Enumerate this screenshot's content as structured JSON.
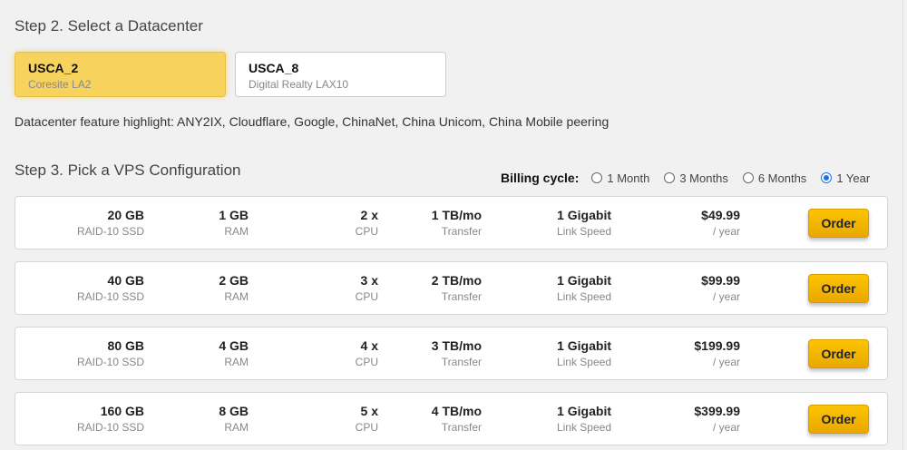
{
  "step2": {
    "title": "Step 2. Select a Datacenter",
    "datacenters": [
      {
        "code": "USCA_2",
        "name": "Coresite LA2",
        "selected": true
      },
      {
        "code": "USCA_8",
        "name": "Digital Realty LAX10",
        "selected": false
      }
    ],
    "feature": "Datacenter feature highlight: ANY2IX, Cloudflare, Google, ChinaNet, China Unicom, China Mobile peering"
  },
  "step3": {
    "title": "Step 3. Pick a VPS Configuration",
    "billing_label": "Billing cycle:",
    "billing_options": [
      {
        "label": "1 Month",
        "selected": false
      },
      {
        "label": "3 Months",
        "selected": false
      },
      {
        "label": "6 Months",
        "selected": false
      },
      {
        "label": "1 Year",
        "selected": true
      }
    ],
    "accent": "#1a73e8",
    "plans": [
      {
        "storage": "20 GB",
        "storage_l": "RAID-10 SSD",
        "ram": "1 GB",
        "ram_l": "RAM",
        "cpu": "2 x",
        "cpu_l": "CPU",
        "transfer": "1 TB/mo",
        "transfer_l": "Transfer",
        "link": "1 Gigabit",
        "link_l": "Link Speed",
        "price": "$49.99",
        "period": "/ year",
        "order": "Order"
      },
      {
        "storage": "40 GB",
        "storage_l": "RAID-10 SSD",
        "ram": "2 GB",
        "ram_l": "RAM",
        "cpu": "3 x",
        "cpu_l": "CPU",
        "transfer": "2 TB/mo",
        "transfer_l": "Transfer",
        "link": "1 Gigabit",
        "link_l": "Link Speed",
        "price": "$99.99",
        "period": "/ year",
        "order": "Order"
      },
      {
        "storage": "80 GB",
        "storage_l": "RAID-10 SSD",
        "ram": "4 GB",
        "ram_l": "RAM",
        "cpu": "4 x",
        "cpu_l": "CPU",
        "transfer": "3 TB/mo",
        "transfer_l": "Transfer",
        "link": "1 Gigabit",
        "link_l": "Link Speed",
        "price": "$199.99",
        "period": "/ year",
        "order": "Order"
      },
      {
        "storage": "160 GB",
        "storage_l": "RAID-10 SSD",
        "ram": "8 GB",
        "ram_l": "RAM",
        "cpu": "5 x",
        "cpu_l": "CPU",
        "transfer": "4 TB/mo",
        "transfer_l": "Transfer",
        "link": "1 Gigabit",
        "link_l": "Link Speed",
        "price": "$399.99",
        "period": "/ year",
        "order": "Order"
      }
    ]
  }
}
